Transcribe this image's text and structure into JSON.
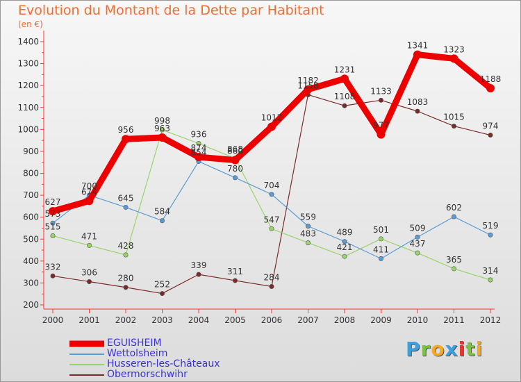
{
  "title": "Evolution du Montant de la Dette par Habitant",
  "subtitle": "(en €)",
  "logo": {
    "text": "Proxiti",
    "letter_colors": [
      "#3aa0e0",
      "#7cc242",
      "#f7a823",
      "#3aa0e0",
      "#e8352e",
      "#7cc242",
      "#f7a823"
    ]
  },
  "chart_data": {
    "type": "line",
    "x": [
      2000,
      2001,
      2002,
      2003,
      2004,
      2005,
      2006,
      2007,
      2008,
      2009,
      2010,
      2011,
      2012
    ],
    "ylim": [
      200,
      1400
    ],
    "yticks": [
      200,
      300,
      400,
      500,
      600,
      700,
      800,
      900,
      1000,
      1100,
      1200,
      1300,
      1400
    ],
    "grid": false,
    "legend": "bottom-left",
    "series": [
      {
        "name": "EGUISHEIM",
        "color": "#ee0000",
        "values": [
          627,
          674,
          956,
          963,
          874,
          860,
          1012,
          1182,
          1231,
          977,
          1341,
          1323,
          1188
        ],
        "labels": [
          "627",
          "674",
          "956",
          "963",
          "874",
          "860",
          "1012",
          "1182",
          "1231",
          "977",
          "1341",
          "1323",
          "1188"
        ]
      },
      {
        "name": "Wettolsheim",
        "color": "#5b9bd5",
        "values": [
          573,
          700,
          645,
          584,
          854,
          780,
          704,
          559,
          489,
          411,
          509,
          602,
          519
        ],
        "labels": [
          "573",
          "700",
          "645",
          "584",
          "854",
          "780",
          "704",
          "559",
          "489",
          "411",
          "509",
          "602",
          "519"
        ]
      },
      {
        "name": "Husseren-les-Châteaux",
        "color": "#9ad36a",
        "values": [
          515,
          471,
          428,
          998,
          936,
          868,
          547,
          483,
          421,
          501,
          437,
          365,
          314
        ],
        "labels": [
          "515",
          "471",
          "428",
          "998",
          "936",
          "868",
          "547",
          "483",
          "421",
          "501",
          "437",
          "365",
          "314"
        ]
      },
      {
        "name": "Obermorschwihr",
        "color": "#7a2a2a",
        "values": [
          332,
          306,
          280,
          252,
          339,
          311,
          284,
          1158,
          1108,
          1133,
          1083,
          1015,
          974
        ],
        "labels": [
          "332",
          "306",
          "280",
          "252",
          "339",
          "311",
          "284",
          "1158",
          "1108",
          "1133",
          "1083",
          "1015",
          "974"
        ]
      }
    ]
  }
}
